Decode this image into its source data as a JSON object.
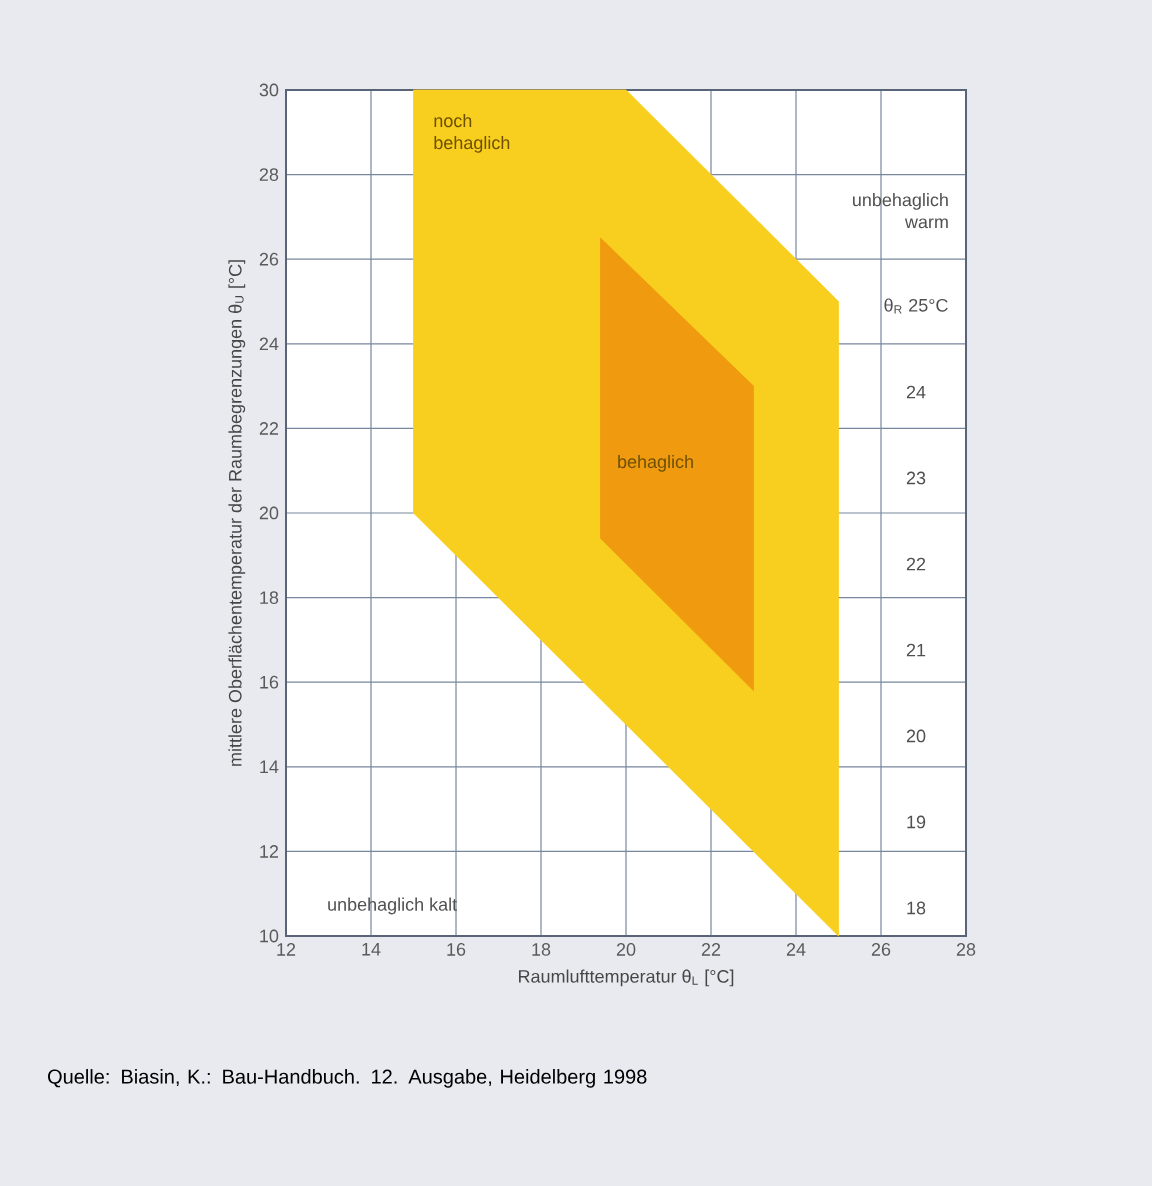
{
  "chart_data": {
    "type": "area",
    "xlabel": "Raumlufttemperatur θ$_{L}$ [°C]",
    "ylabel": "mittlere Oberflächentemperatur der Raumbegrenzungen θ$_{U}$ [°C]",
    "xlim": [
      12,
      28
    ],
    "ylim": [
      10,
      30
    ],
    "xticks": [
      12,
      14,
      16,
      18,
      20,
      22,
      24,
      26,
      28
    ],
    "yticks": [
      10,
      12,
      14,
      16,
      18,
      20,
      22,
      24,
      26,
      28,
      30
    ],
    "grid": true,
    "series": [
      {
        "name": "noch behaglich",
        "color": "#f8cf1f",
        "x": [
          15,
          15,
          25,
          25,
          20
        ],
        "values": [
          30,
          20,
          10,
          25,
          30
        ]
      },
      {
        "name": "behaglich",
        "color": "#f09a10",
        "x": [
          19.4,
          23,
          23,
          19.4
        ],
        "values": [
          26.5,
          23,
          15.8,
          19.4
        ]
      }
    ],
    "annotations": [
      "unbehaglich kalt",
      "unbehaglich warm",
      "θ$_{R}$ 25°C",
      "24",
      "23",
      "22",
      "21",
      "20",
      "19",
      "18",
      "Quelle: Biasin, K.: Bau-Handbuch. 12. Ausgabe, Heidelberg 1998"
    ]
  }
}
